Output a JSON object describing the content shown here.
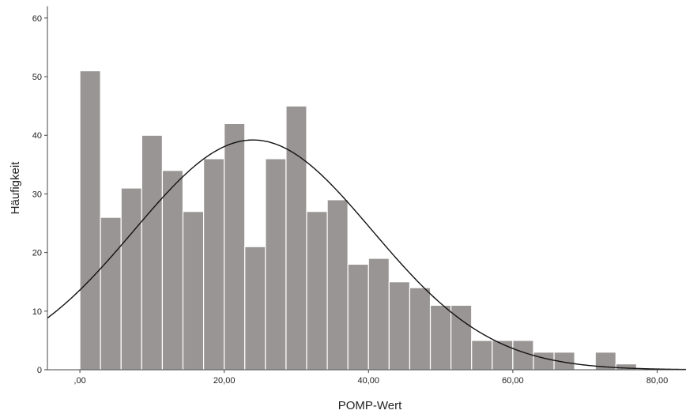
{
  "chart_data": {
    "type": "bar",
    "subtype": "histogram with normal curve",
    "title": "",
    "xlabel": "POMP-Wert",
    "ylabel": "Häufigkeit",
    "xlim": [
      -4.5,
      84
    ],
    "ylim": [
      0,
      62
    ],
    "grid": false,
    "bin_width": 2.857,
    "bins": [
      {
        "x_start": 0.0,
        "x_end": 2.857,
        "value": 51
      },
      {
        "x_start": 2.857,
        "x_end": 5.714,
        "value": 26
      },
      {
        "x_start": 5.714,
        "x_end": 8.571,
        "value": 31
      },
      {
        "x_start": 8.571,
        "x_end": 11.429,
        "value": 40
      },
      {
        "x_start": 11.429,
        "x_end": 14.286,
        "value": 34
      },
      {
        "x_start": 14.286,
        "x_end": 17.143,
        "value": 27
      },
      {
        "x_start": 17.143,
        "x_end": 20.0,
        "value": 36
      },
      {
        "x_start": 20.0,
        "x_end": 22.857,
        "value": 42
      },
      {
        "x_start": 22.857,
        "x_end": 25.714,
        "value": 21
      },
      {
        "x_start": 25.714,
        "x_end": 28.571,
        "value": 36
      },
      {
        "x_start": 28.571,
        "x_end": 31.429,
        "value": 45
      },
      {
        "x_start": 31.429,
        "x_end": 34.286,
        "value": 27
      },
      {
        "x_start": 34.286,
        "x_end": 37.143,
        "value": 29
      },
      {
        "x_start": 37.143,
        "x_end": 40.0,
        "value": 18
      },
      {
        "x_start": 40.0,
        "x_end": 42.857,
        "value": 19
      },
      {
        "x_start": 42.857,
        "x_end": 45.714,
        "value": 15
      },
      {
        "x_start": 45.714,
        "x_end": 48.571,
        "value": 14
      },
      {
        "x_start": 48.571,
        "x_end": 51.429,
        "value": 11
      },
      {
        "x_start": 51.429,
        "x_end": 54.286,
        "value": 11
      },
      {
        "x_start": 54.286,
        "x_end": 57.143,
        "value": 5
      },
      {
        "x_start": 57.143,
        "x_end": 60.0,
        "value": 5
      },
      {
        "x_start": 60.0,
        "x_end": 62.857,
        "value": 5
      },
      {
        "x_start": 62.857,
        "x_end": 65.714,
        "value": 3
      },
      {
        "x_start": 65.714,
        "x_end": 68.571,
        "value": 3
      },
      {
        "x_start": 68.571,
        "x_end": 71.429,
        "value": 0
      },
      {
        "x_start": 71.429,
        "x_end": 74.286,
        "value": 3
      },
      {
        "x_start": 74.286,
        "x_end": 77.143,
        "value": 1
      }
    ],
    "normal_curve": {
      "mean": 24.0,
      "sd": 16.5,
      "peak": 39.2
    },
    "x_ticks": [
      {
        "value": 0,
        "label": ",00"
      },
      {
        "value": 20,
        "label": "20,00"
      },
      {
        "value": 40,
        "label": "40,00"
      },
      {
        "value": 60,
        "label": "60,00"
      },
      {
        "value": 80,
        "label": "80,00"
      }
    ],
    "y_ticks": [
      {
        "value": 0,
        "label": "0"
      },
      {
        "value": 10,
        "label": "10"
      },
      {
        "value": 20,
        "label": "20"
      },
      {
        "value": 30,
        "label": "30"
      },
      {
        "value": 40,
        "label": "40"
      },
      {
        "value": 50,
        "label": "50"
      },
      {
        "value": 60,
        "label": "60"
      }
    ],
    "colors": {
      "bar_fill": "#999594",
      "bar_stroke": "#ffffff",
      "curve": "#111111",
      "axis": "#444444"
    }
  }
}
